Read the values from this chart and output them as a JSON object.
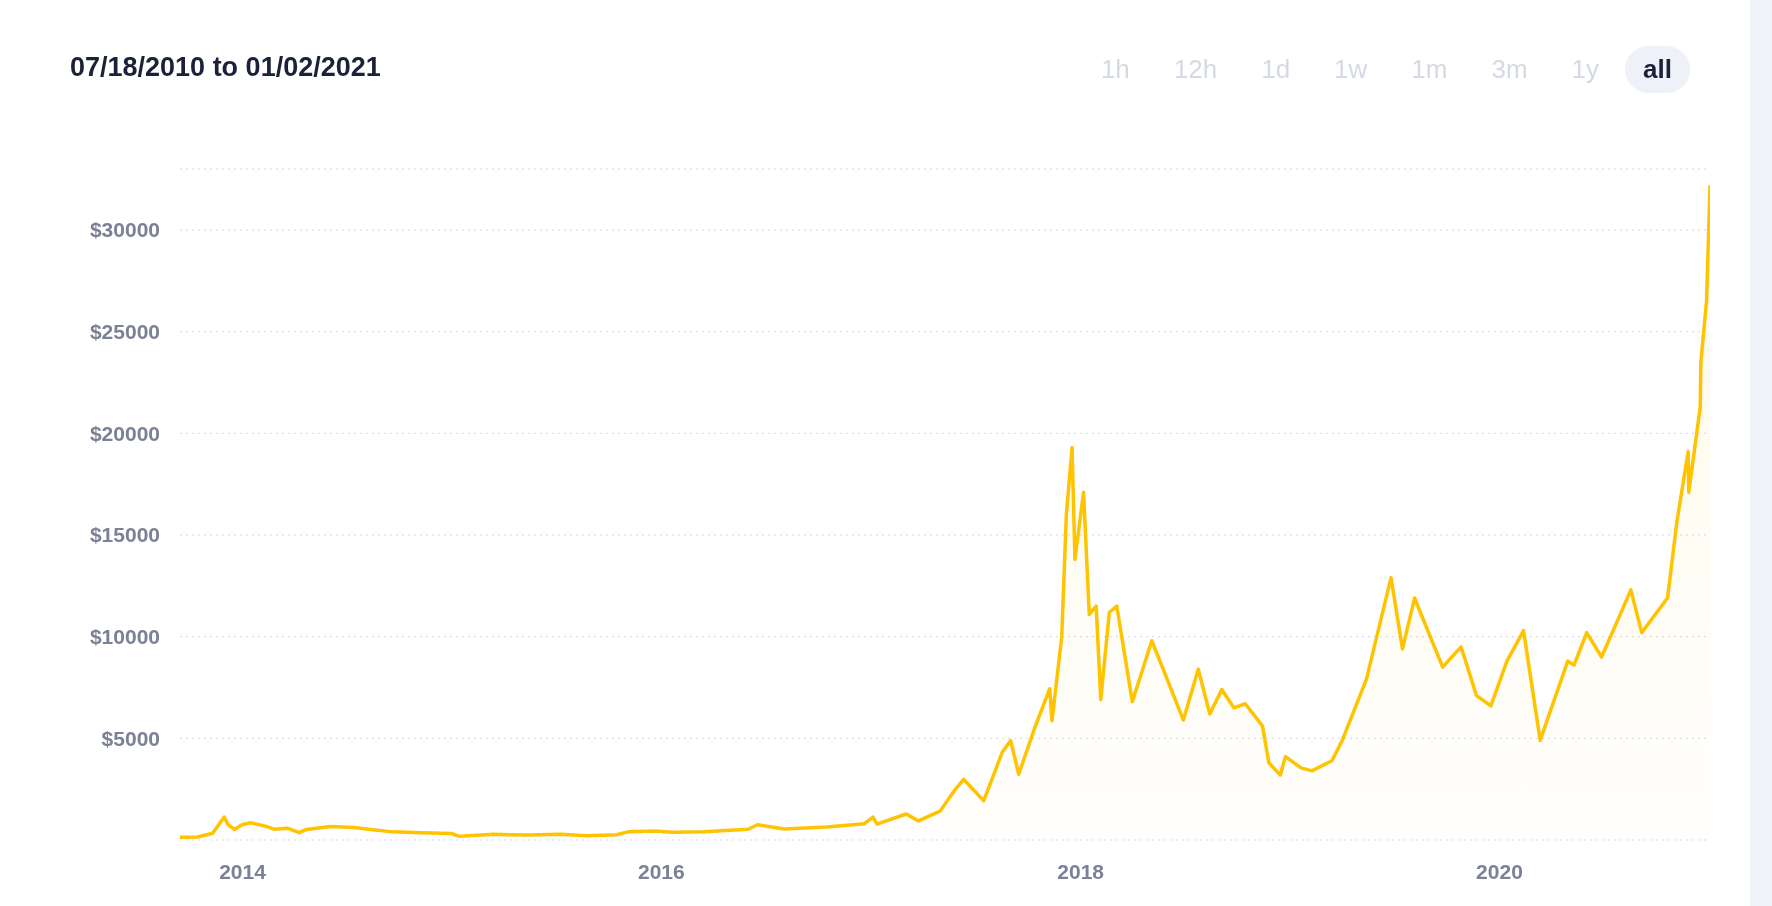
{
  "chart_data": {
    "type": "area",
    "title": "07/18/2010 to 01/02/2021",
    "annotations": [
      "1h",
      "12h",
      "1d",
      "1w",
      "1m",
      "3m",
      "1y",
      "all"
    ],
    "x": [
      "2013-09-14",
      "2013-10-15",
      "2013-11-10",
      "2013-11-30",
      "2013-12-07",
      "2013-12-18",
      "2013-12-31",
      "2014-01-15",
      "2014-02-10",
      "2014-02-25",
      "2014-03-20",
      "2014-04-10",
      "2014-04-20",
      "2014-06-03",
      "2014-07-15",
      "2014-08-20",
      "2014-09-20",
      "2014-11-10",
      "2014-12-31",
      "2015-01-14",
      "2015-03-15",
      "2015-05-15",
      "2015-07-10",
      "2015-08-24",
      "2015-10-15",
      "2015-11-04",
      "2015-12-20",
      "2016-01-20",
      "2016-03-15",
      "2016-05-31",
      "2016-06-17",
      "2016-08-02",
      "2016-10-15",
      "2016-12-20",
      "2017-01-04",
      "2017-01-11",
      "2017-03-03",
      "2017-03-24",
      "2017-05-01",
      "2017-05-25",
      "2017-06-11",
      "2017-07-16",
      "2017-08-17",
      "2017-09-01",
      "2017-09-15",
      "2017-10-12",
      "2017-11-08",
      "2017-11-12",
      "2017-11-29",
      "2017-12-07",
      "2017-12-17",
      "2017-12-22",
      "2018-01-06",
      "2018-01-16",
      "2018-01-28",
      "2018-02-05",
      "2018-02-20",
      "2018-03-05",
      "2018-04-01",
      "2018-05-05",
      "2018-06-05",
      "2018-06-29",
      "2018-07-25",
      "2018-08-14",
      "2018-09-04",
      "2018-09-25",
      "2018-10-15",
      "2018-11-14",
      "2018-11-25",
      "2018-12-15",
      "2018-12-24",
      "2019-01-20",
      "2019-02-08",
      "2019-03-15",
      "2019-04-02",
      "2019-05-14",
      "2019-06-26",
      "2019-07-16",
      "2019-08-06",
      "2019-09-24",
      "2019-10-26",
      "2019-11-22",
      "2019-12-17",
      "2020-01-14",
      "2020-02-12",
      "2020-03-12",
      "2020-04-29",
      "2020-05-10",
      "2020-06-01",
      "2020-06-27",
      "2020-07-28",
      "2020-08-17",
      "2020-09-05",
      "2020-10-20",
      "2020-11-05",
      "2020-11-25",
      "2020-11-26",
      "2020-12-16",
      "2020-12-17",
      "2020-12-27",
      "2021-01-02"
    ],
    "series": [
      {
        "color": "#ffc300",
        "values": [
          130,
          150,
          330,
          1130,
          750,
          520,
          750,
          850,
          680,
          530,
          580,
          360,
          500,
          660,
          620,
          490,
          400,
          360,
          320,
          180,
          280,
          240,
          280,
          210,
          260,
          400,
          440,
          380,
          400,
          530,
          750,
          540,
          640,
          800,
          1130,
          780,
          1280,
          940,
          1420,
          2400,
          2980,
          1930,
          4300,
          4890,
          3230,
          5440,
          7440,
          5860,
          10000,
          16000,
          19300,
          13800,
          17100,
          11100,
          11500,
          6900,
          11200,
          11500,
          6800,
          9800,
          7600,
          5900,
          8400,
          6200,
          7400,
          6500,
          6700,
          5600,
          3800,
          3200,
          4100,
          3550,
          3400,
          3900,
          4900,
          7900,
          12900,
          9400,
          11900,
          8500,
          9500,
          7100,
          6600,
          8800,
          10300,
          4900,
          8800,
          8600,
          10200,
          9000,
          11000,
          12300,
          10200,
          11900,
          15600,
          19100,
          17100,
          21300,
          23500,
          26500,
          32200
        ]
      }
    ],
    "xlim": [
      "2013-09-14",
      "2021-01-02"
    ],
    "xticks": [
      {
        "value": "2014-01-01",
        "label": "2014"
      },
      {
        "value": "2016-01-01",
        "label": "2016"
      },
      {
        "value": "2018-01-01",
        "label": "2018"
      },
      {
        "value": "2020-01-01",
        "label": "2020"
      }
    ],
    "ylim": [
      0,
      33000
    ],
    "yticks": [
      {
        "value": 5000,
        "label": "$5000"
      },
      {
        "value": 10000,
        "label": "$10000"
      },
      {
        "value": 15000,
        "label": "$15000"
      },
      {
        "value": 20000,
        "label": "$20000"
      },
      {
        "value": 25000,
        "label": "$25000"
      },
      {
        "value": 30000,
        "label": "$30000"
      }
    ],
    "grid": "y"
  }
}
